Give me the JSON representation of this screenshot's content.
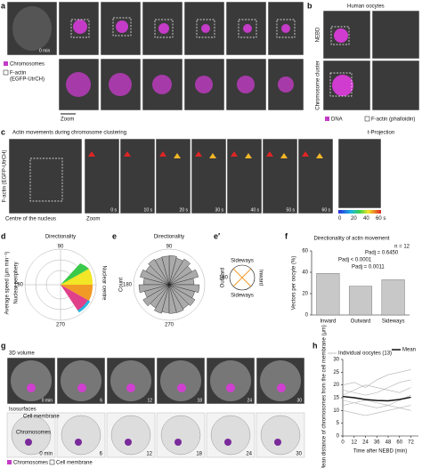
{
  "panels": {
    "a": {
      "label": "a",
      "time": "0 min",
      "legend": [
        "Chromosomes",
        "F-actin",
        "(EGFP-UtrCH)"
      ],
      "zoom": "Zoom"
    },
    "b": {
      "label": "b",
      "title": "Human oocytes",
      "rows": [
        "NEBD",
        "Chromosome cluster"
      ],
      "legend": [
        "DNA",
        "F-actin (phalloidin)"
      ]
    },
    "c": {
      "label": "c",
      "title": "Actin movements during chromosome clustering",
      "projection": "t-Projection",
      "side": "F-actin (EGFP-UtrCH)",
      "centre": "Centre of the nucleus",
      "zoom": "Zoom",
      "times": [
        "0 s",
        "10 s",
        "20 s",
        "30 s",
        "40 s",
        "50 s",
        "60 s"
      ],
      "colorbar": [
        "0",
        "20",
        "40",
        "60 s"
      ]
    },
    "d": {
      "label": "d",
      "title": "Directionality",
      "angles": [
        "90",
        "180",
        "270"
      ],
      "ylabel": "Average speed (μm min⁻¹)",
      "left": "Nuclear periphery",
      "right": "Nuclear centre"
    },
    "e": {
      "label": "e",
      "title": "Directionality",
      "angles": [
        "90",
        "180",
        "270"
      ],
      "ylabel": "Count"
    },
    "e2": {
      "label": "e′",
      "top": "Sideways",
      "bottom": "Sideways",
      "left": "Outward",
      "right": "Inward",
      "angle": "180"
    },
    "g": {
      "label": "g",
      "row1": "3D volume",
      "row2": "Isosurfaces",
      "membrane": "Cell membrane",
      "chromosomes": "Chromosomes",
      "times": [
        "0 min",
        "6",
        "12",
        "18",
        "24",
        "30"
      ],
      "legend": [
        "Chromosomes",
        "Cell membrane"
      ]
    },
    "f_label": "f",
    "h_label": "h"
  },
  "chart_data": [
    {
      "type": "bar",
      "title": "Directionality of actin movement",
      "ylabel": "Vectors per oocyte (%)",
      "categories": [
        "Inward",
        "Outward",
        "Sideways"
      ],
      "values": [
        39,
        27,
        33
      ],
      "color": "#c8c8c8",
      "ylim": [
        0,
        60
      ],
      "yticks": [
        0,
        20,
        40,
        60
      ],
      "annotations": [
        "Padj = 0.0011",
        "Padj < 0.0001",
        "Padj = 0.6450",
        "n = 12"
      ]
    },
    {
      "type": "line",
      "ylabel": "Mean distance of chromosomes from the cell membrane (μm)",
      "xlabel": "Time after NEBD (min)",
      "x": [
        0,
        12,
        24,
        36,
        48,
        60,
        72
      ],
      "xlim": [
        0,
        80
      ],
      "xticks": [
        0,
        12,
        24,
        36,
        48,
        60,
        72
      ],
      "ylim": [
        0,
        30
      ],
      "yticks": [
        0,
        5,
        10,
        15,
        20,
        25,
        30
      ],
      "individual_label": "Individual oocytes (13)",
      "individual_color": "#b0b0b0",
      "individuals": [
        [
          20,
          21,
          19,
          22,
          24,
          25,
          26
        ],
        [
          18,
          17,
          16,
          17,
          19,
          21,
          22
        ],
        [
          14,
          13,
          12,
          11,
          12,
          14,
          16
        ],
        [
          12,
          13,
          14,
          13,
          12,
          11,
          12
        ],
        [
          10,
          9,
          8,
          9,
          10,
          11,
          10
        ],
        [
          16,
          18,
          20,
          19,
          18,
          17,
          19
        ]
      ],
      "series": [
        {
          "name": "Mean",
          "color": "#111111",
          "values": [
            15.5,
            15,
            14.3,
            13.9,
            13.8,
            14.3,
            15.2
          ]
        }
      ]
    }
  ]
}
